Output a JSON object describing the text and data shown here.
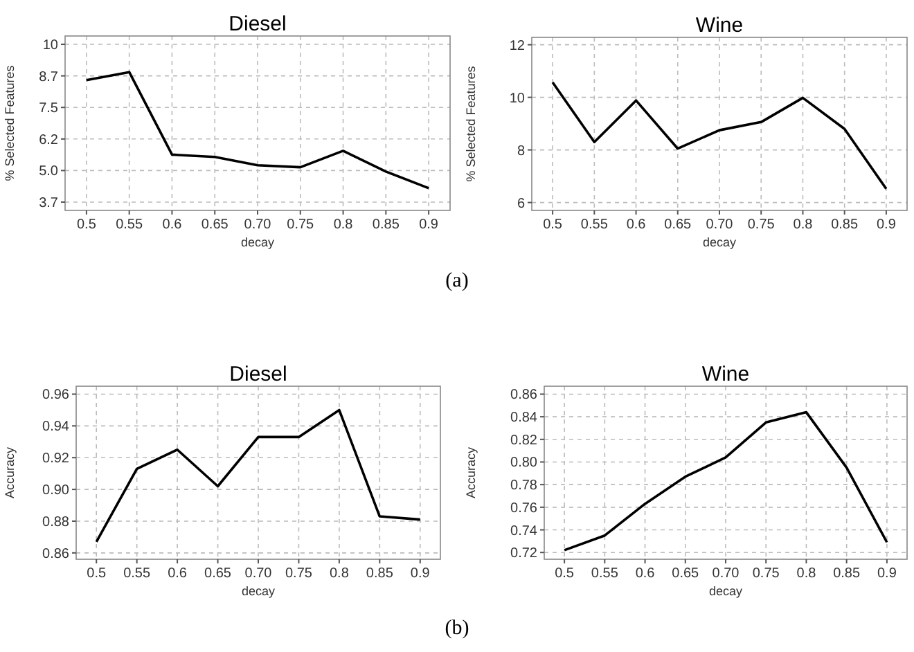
{
  "chart_data": [
    {
      "type": "line",
      "title": "Diesel",
      "xlabel": "decay",
      "ylabel": "% Selected Features",
      "categories": [
        "0.5",
        "0.55",
        "0.6",
        "0.65",
        "0.70",
        "0.75",
        "0.8",
        "0.85",
        "0.9"
      ],
      "series": [
        {
          "color": "#000000",
          "values": [
            8.58,
            8.9,
            5.63,
            5.54,
            5.21,
            5.13,
            5.78,
            4.96,
            4.3
          ]
        }
      ],
      "ylim": [
        3.42,
        10.33
      ],
      "yticks": [
        {
          "value": 3.75,
          "label": "3.7"
        },
        {
          "value": 5,
          "label": "5.0"
        },
        {
          "value": 6.25,
          "label": "6.2"
        },
        {
          "value": 7.5,
          "label": "7.5"
        },
        {
          "value": 8.75,
          "label": "8.7"
        },
        10
      ],
      "grid": true,
      "annotations": [
        "(a)"
      ]
    },
    {
      "type": "line",
      "title": "Wine",
      "xlabel": "decay",
      "ylabel": "% Selected Features",
      "categories": [
        "0.5",
        "0.55",
        "0.6",
        "0.65",
        "0.70",
        "0.75",
        "0.8",
        "0.85",
        "0.9"
      ],
      "series": [
        {
          "color": "#000000",
          "values": [
            10.57,
            8.3,
            9.88,
            8.05,
            8.75,
            9.06,
            9.98,
            8.8,
            6.52
          ]
        }
      ],
      "ylim": [
        5.7,
        12.28
      ],
      "yticks": [
        6,
        8,
        10,
        12
      ],
      "grid": true
    },
    {
      "type": "line",
      "title": "Diesel",
      "xlabel": "decay",
      "ylabel": "Accuracy",
      "categories": [
        "0.5",
        "0.55",
        "0.6",
        "0.65",
        "0.70",
        "0.75",
        "0.8",
        "0.85",
        "0.9"
      ],
      "series": [
        {
          "color": "#000000",
          "values": [
            0.867,
            0.913,
            0.925,
            0.902,
            0.933,
            0.933,
            0.95,
            0.883,
            0.881
          ]
        }
      ],
      "ylim": [
        0.856,
        0.965
      ],
      "yticks": [
        {
          "value": 0.86,
          "label": "0.86"
        },
        {
          "value": 0.88,
          "label": "0.88"
        },
        {
          "value": 0.9,
          "label": "0.90"
        },
        {
          "value": 0.92,
          "label": "0.92"
        },
        {
          "value": 0.94,
          "label": "0.94"
        },
        {
          "value": 0.96,
          "label": "0.96"
        }
      ],
      "grid": true,
      "annotations": [
        "(b)"
      ]
    },
    {
      "type": "line",
      "title": "Wine",
      "xlabel": "decay",
      "ylabel": "Accuracy",
      "categories": [
        "0.5",
        "0.55",
        "0.6",
        "0.65",
        "0.70",
        "0.75",
        "0.8",
        "0.85",
        "0.9"
      ],
      "series": [
        {
          "color": "#000000",
          "values": [
            0.722,
            0.735,
            0.763,
            0.787,
            0.804,
            0.835,
            0.844,
            0.795,
            0.729
          ]
        }
      ],
      "ylim": [
        0.714,
        0.867
      ],
      "yticks": [
        {
          "value": 0.72,
          "label": "0.72"
        },
        {
          "value": 0.74,
          "label": "0.74"
        },
        {
          "value": 0.76,
          "label": "0.76"
        },
        {
          "value": 0.78,
          "label": "0.78"
        },
        {
          "value": 0.8,
          "label": "0.80"
        },
        {
          "value": 0.82,
          "label": "0.82"
        },
        {
          "value": 0.84,
          "label": "0.84"
        },
        {
          "value": 0.86,
          "label": "0.86"
        }
      ],
      "grid": true
    }
  ]
}
